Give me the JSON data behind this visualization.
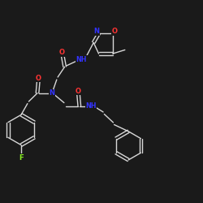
{
  "bg_color": "#1a1a1a",
  "line_color": "#d8d8d8",
  "atom_colors": {
    "O": "#ff3333",
    "N": "#3333ff",
    "F": "#88ee22",
    "C": "#d8d8d8"
  },
  "figsize": [
    2.5,
    2.5
  ],
  "dpi": 100,
  "lw": 1.0,
  "fontsize": 5.8
}
